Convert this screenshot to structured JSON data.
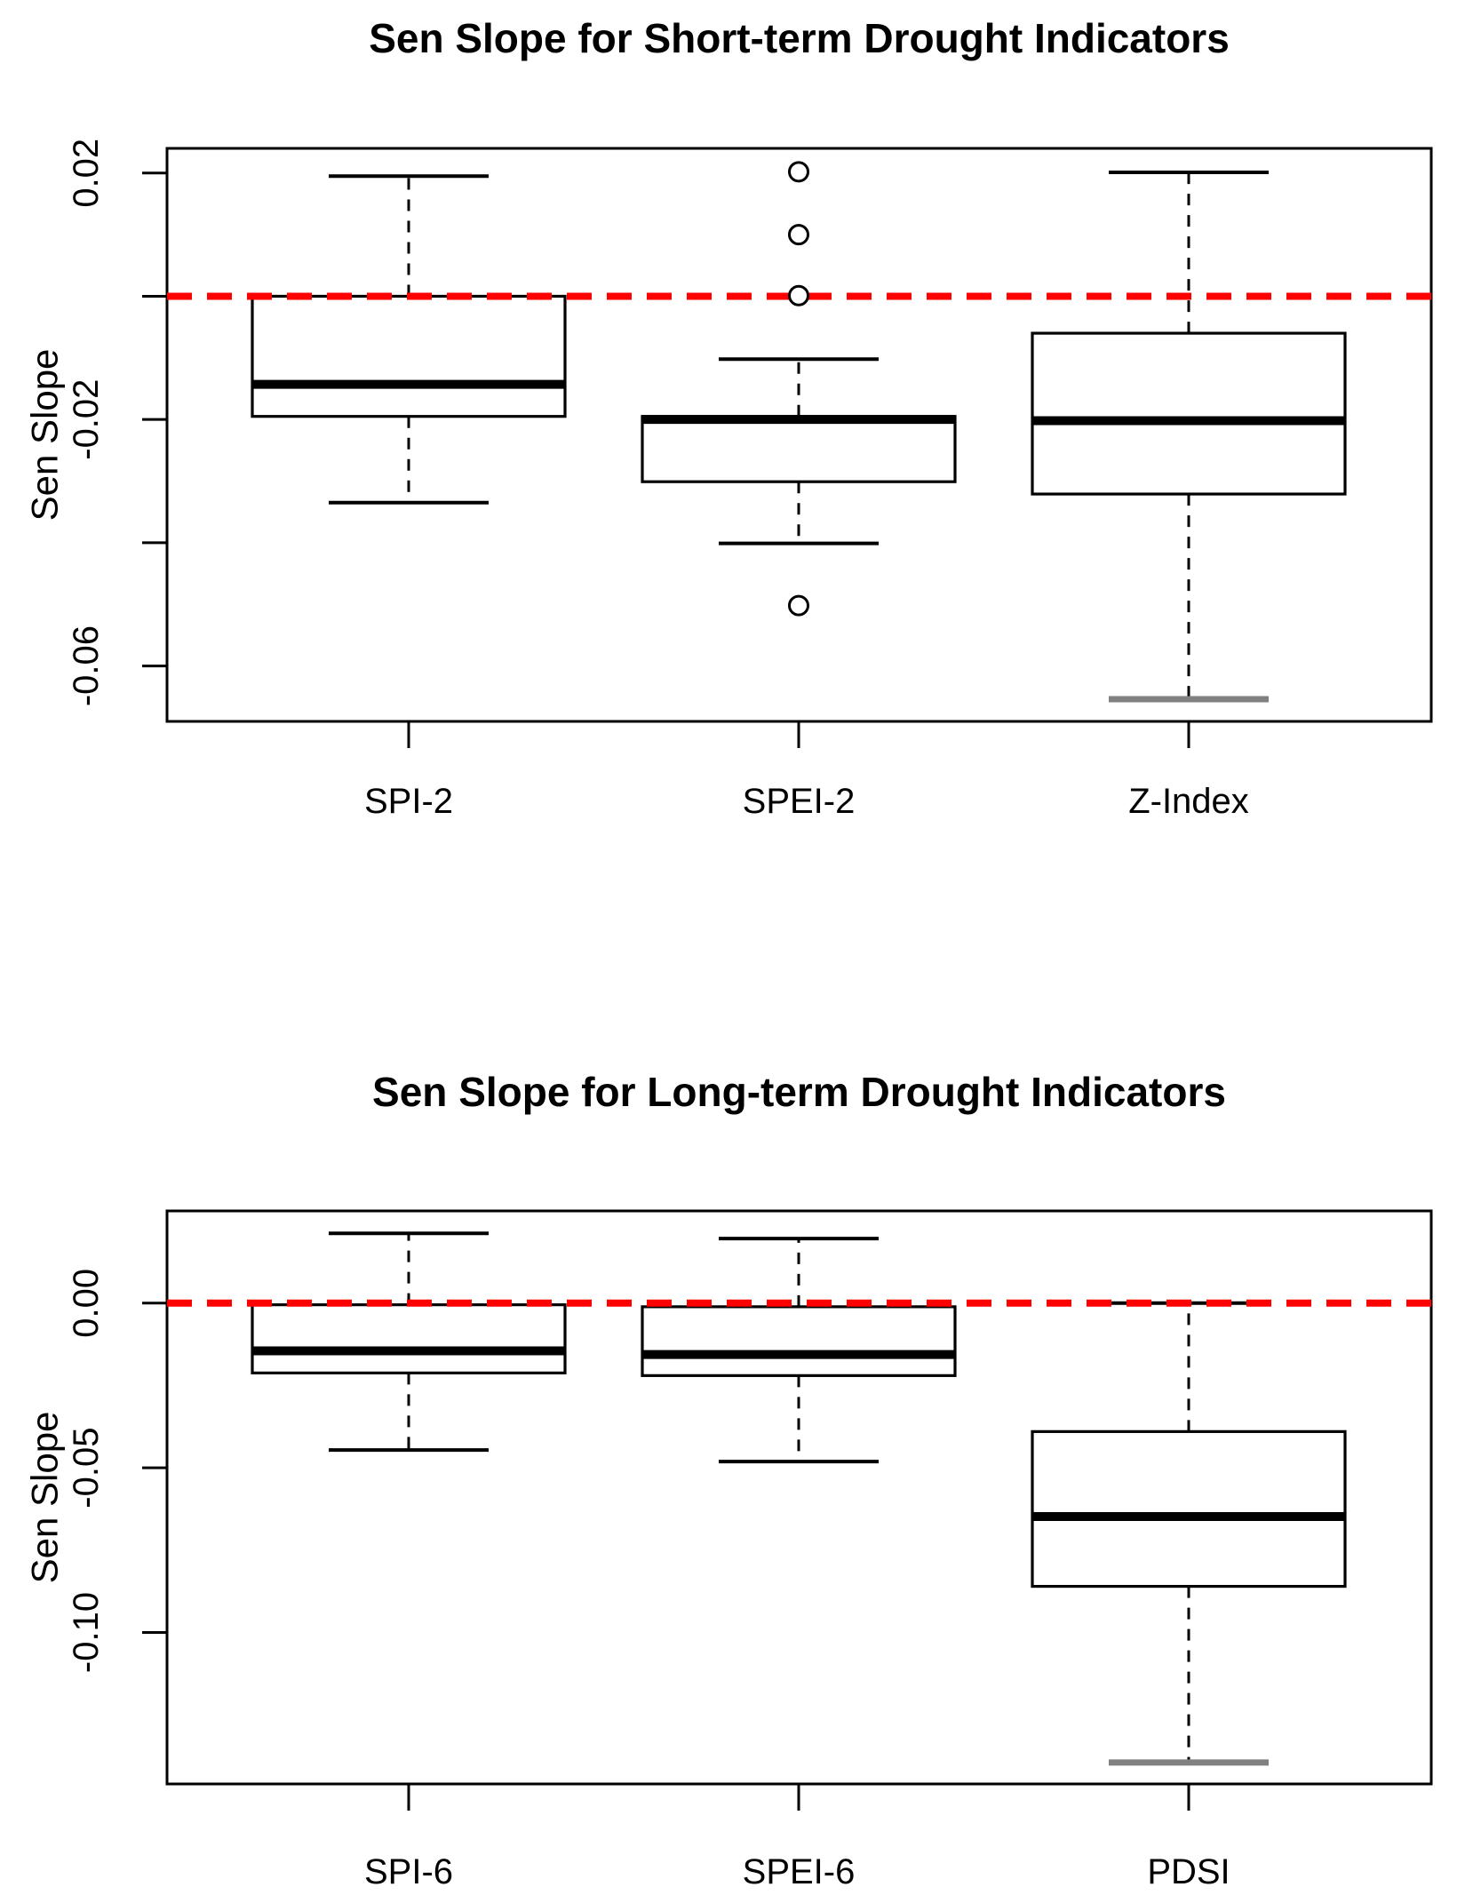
{
  "colors": {
    "zero_line": "#ff0000",
    "box_stroke": "#000000",
    "gray_cap": "#808080",
    "background": "#ffffff"
  },
  "chart_data": [
    {
      "type": "boxplot",
      "title": "Sen Slope for Short-term Drought Indicators",
      "ylabel": "Sen Slope",
      "ylim": [
        -0.069,
        0.024
      ],
      "grid": false,
      "legend": "none",
      "zero_line": {
        "value": 0,
        "color": "#ff0000",
        "style": "dashed"
      },
      "yticks": [
        {
          "value": 0.02,
          "label": "0.02"
        },
        {
          "value": 0.0,
          "label": ""
        },
        {
          "value": -0.02,
          "label": "-0.02"
        },
        {
          "value": -0.04,
          "label": ""
        },
        {
          "value": -0.06,
          "label": "-0.06"
        }
      ],
      "categories": [
        "SPI-2",
        "SPEI-2",
        "Z-Index"
      ],
      "boxes": [
        {
          "label": "SPI-2",
          "whisker_low": -0.0335,
          "q1": -0.0195,
          "median": -0.0143,
          "q3": 0.0,
          "whisker_high": 0.0195,
          "outliers": []
        },
        {
          "label": "SPEI-2",
          "whisker_low": -0.0401,
          "q1": -0.0301,
          "median": -0.02,
          "q3": -0.0195,
          "whisker_high": -0.0102,
          "outliers": [
            0.0202,
            0.01,
            0.0001,
            -0.0502
          ]
        },
        {
          "label": "Z-Index",
          "whisker_low": -0.0654,
          "q1": -0.0321,
          "median": -0.0202,
          "q3": -0.006,
          "whisker_high": 0.0201,
          "outliers": [],
          "lower_cap_color": "#808080"
        }
      ]
    },
    {
      "type": "boxplot",
      "title": "Sen Slope for Long-term Drought Indicators",
      "ylabel": "Sen Slope",
      "ylim": [
        -0.146,
        0.028
      ],
      "grid": false,
      "legend": "none",
      "zero_line": {
        "value": 0,
        "color": "#ff0000",
        "style": "dashed"
      },
      "yticks": [
        {
          "value": 0.0,
          "label": "0.00"
        },
        {
          "value": -0.05,
          "label": "-0.05"
        },
        {
          "value": -0.1,
          "label": "-0.10"
        }
      ],
      "categories": [
        "SPI-6",
        "SPEI-6",
        "PDSI"
      ],
      "boxes": [
        {
          "label": "SPI-6",
          "whisker_low": -0.0446,
          "q1": -0.0212,
          "median": -0.0145,
          "q3": -0.0005,
          "whisker_high": 0.0212,
          "outliers": []
        },
        {
          "label": "SPEI-6",
          "whisker_low": -0.0481,
          "q1": -0.022,
          "median": -0.0156,
          "q3": -0.0011,
          "whisker_high": 0.0196,
          "outliers": []
        },
        {
          "label": "PDSI",
          "whisker_low": -0.1395,
          "q1": -0.086,
          "median": -0.0648,
          "q3": -0.039,
          "whisker_high": 0.0,
          "outliers": [],
          "lower_cap_color": "#808080"
        }
      ]
    }
  ]
}
